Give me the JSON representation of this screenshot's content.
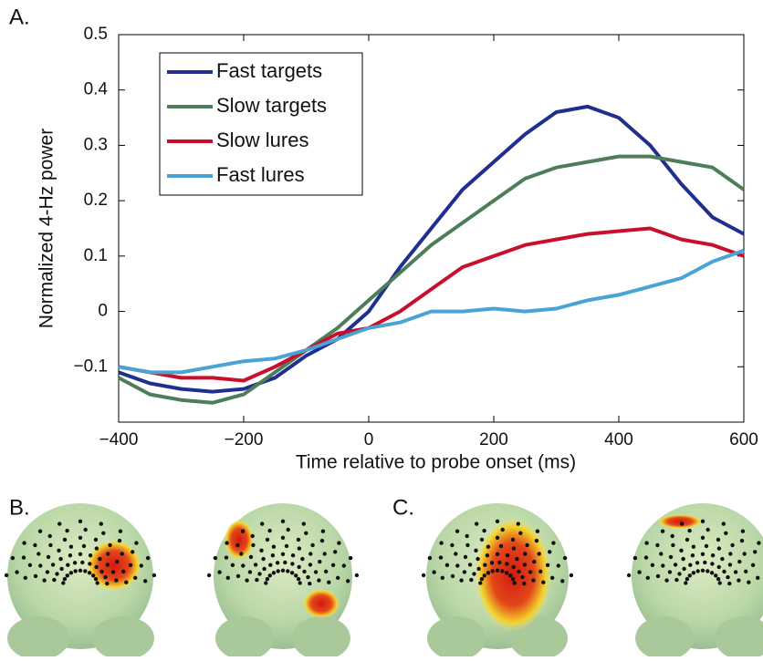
{
  "chart_data": {
    "type": "line",
    "panel_label": "A.",
    "x_label": "Time relative to probe onset (ms)",
    "y_label": "Normalized 4-Hz power",
    "x": [
      -400,
      -350,
      -300,
      -250,
      -200,
      -150,
      -100,
      -50,
      0,
      50,
      100,
      150,
      200,
      250,
      300,
      350,
      400,
      450,
      500,
      550,
      600
    ],
    "series": [
      {
        "name": "Fast targets",
        "color": "#1f2f8f",
        "values": [
          -0.11,
          -0.13,
          -0.14,
          -0.145,
          -0.14,
          -0.12,
          -0.08,
          -0.05,
          0.0,
          0.08,
          0.15,
          0.22,
          0.27,
          0.32,
          0.36,
          0.37,
          0.35,
          0.3,
          0.23,
          0.17,
          0.14
        ]
      },
      {
        "name": "Slow targets",
        "color": "#4e7d5a",
        "values": [
          -0.12,
          -0.15,
          -0.16,
          -0.165,
          -0.15,
          -0.11,
          -0.07,
          -0.03,
          0.02,
          0.07,
          0.12,
          0.16,
          0.2,
          0.24,
          0.26,
          0.27,
          0.28,
          0.28,
          0.27,
          0.26,
          0.22
        ]
      },
      {
        "name": "Slow lures",
        "color": "#c8102e",
        "values": [
          -0.1,
          -0.11,
          -0.12,
          -0.12,
          -0.125,
          -0.1,
          -0.07,
          -0.04,
          -0.03,
          0.0,
          0.04,
          0.08,
          0.1,
          0.12,
          0.13,
          0.14,
          0.145,
          0.15,
          0.13,
          0.12,
          0.1
        ]
      },
      {
        "name": "Fast lures",
        "color": "#4aa3d6",
        "values": [
          -0.1,
          -0.11,
          -0.11,
          -0.1,
          -0.09,
          -0.085,
          -0.07,
          -0.05,
          -0.03,
          -0.02,
          0.0,
          0.0,
          0.005,
          0.0,
          0.005,
          0.02,
          0.03,
          0.045,
          0.06,
          0.09,
          0.11
        ]
      }
    ],
    "xlim": [
      -400,
      600
    ],
    "xticks": [
      {
        "value": -400,
        "label": "−400"
      },
      {
        "value": -200,
        "label": "−200"
      },
      0,
      200,
      400,
      600
    ],
    "ylim": [
      -0.2,
      0.5
    ],
    "yticks": [
      {
        "value": -0.1,
        "label": "−0.1"
      },
      0,
      0.1,
      0.2,
      0.3,
      0.4,
      0.5
    ],
    "legend": "upper-left"
  },
  "panel_labels": [
    "B.",
    "C."
  ]
}
